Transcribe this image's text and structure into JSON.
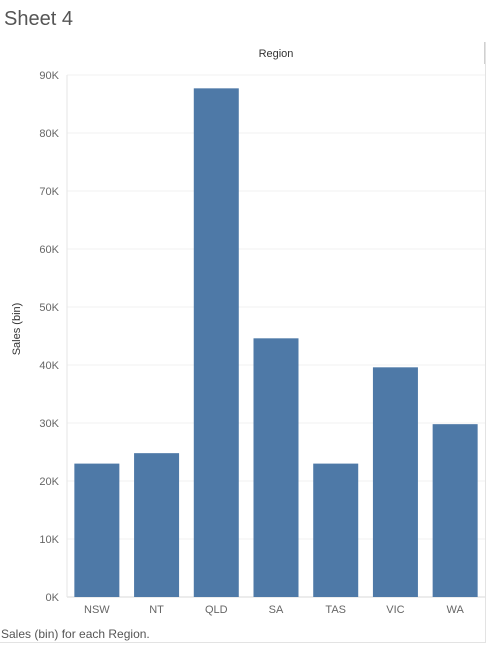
{
  "sheet": {
    "title": "Sheet 4",
    "caption": "Sales (bin) for each Region."
  },
  "chart_data": {
    "type": "bar",
    "column_header": "Region",
    "categories": [
      "NSW",
      "NT",
      "QLD",
      "SA",
      "TAS",
      "VIC",
      "WA"
    ],
    "values": [
      23000,
      24800,
      87700,
      44600,
      23000,
      39600,
      29800
    ],
    "ylabel": "Sales (bin)",
    "ylim": [
      0,
      90000
    ],
    "yticks": [
      0,
      10000,
      20000,
      30000,
      40000,
      50000,
      60000,
      70000,
      80000,
      90000
    ],
    "ytick_labels": [
      "0K",
      "10K",
      "20K",
      "30K",
      "40K",
      "50K",
      "60K",
      "70K",
      "80K",
      "90K"
    ],
    "bar_color": "#4e79a7",
    "gridlines": true
  }
}
